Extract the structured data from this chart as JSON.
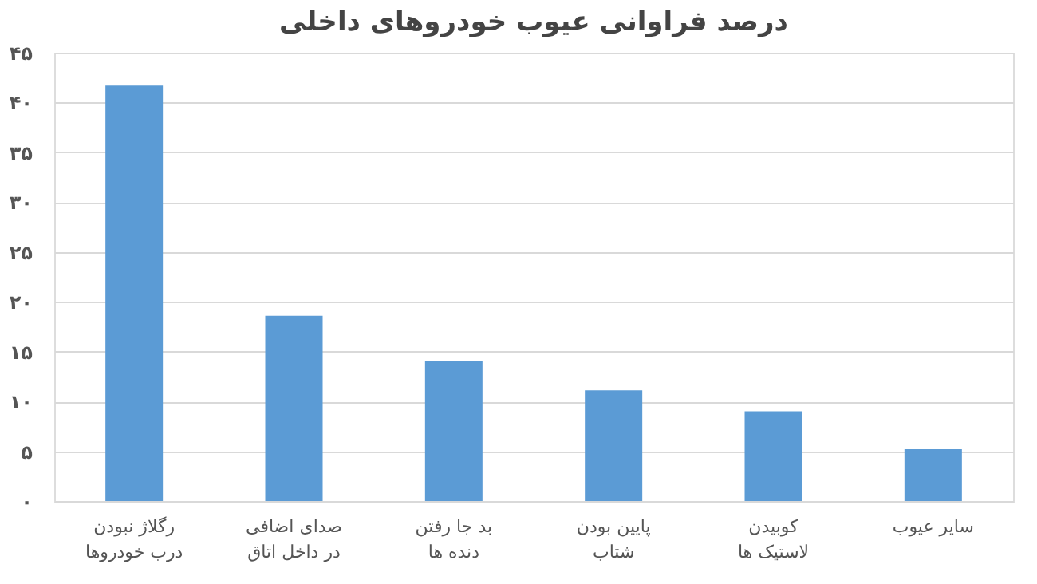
{
  "chart_data": {
    "type": "bar",
    "title": "درصد فراوانی عیوب خودروهای داخلی",
    "categories": [
      "رگلاژ نبودن درب خودروها",
      "صدای اضافی در داخل اتاق",
      "بد جا رفتن دنده ها",
      "پایین بودن شتاب",
      "کوبیدن لاستیک ها",
      "سایر عیوب"
    ],
    "values": [
      41.7,
      18.6,
      14.1,
      11.1,
      9.0,
      5.2
    ],
    "color": "#5b9bd5",
    "ylim": [
      0,
      45
    ],
    "yticks": [
      {
        "value": 0,
        "label": "۰"
      },
      {
        "value": 5,
        "label": "۵"
      },
      {
        "value": 10,
        "label": "۱۰"
      },
      {
        "value": 15,
        "label": "۱۵"
      },
      {
        "value": 20,
        "label": "۲۰"
      },
      {
        "value": 25,
        "label": "۲۵"
      },
      {
        "value": 30,
        "label": "۳۰"
      },
      {
        "value": 35,
        "label": "۳۵"
      },
      {
        "value": 40,
        "label": "۴۰"
      },
      {
        "value": 45,
        "label": "۴۵"
      }
    ],
    "grid": "y"
  }
}
